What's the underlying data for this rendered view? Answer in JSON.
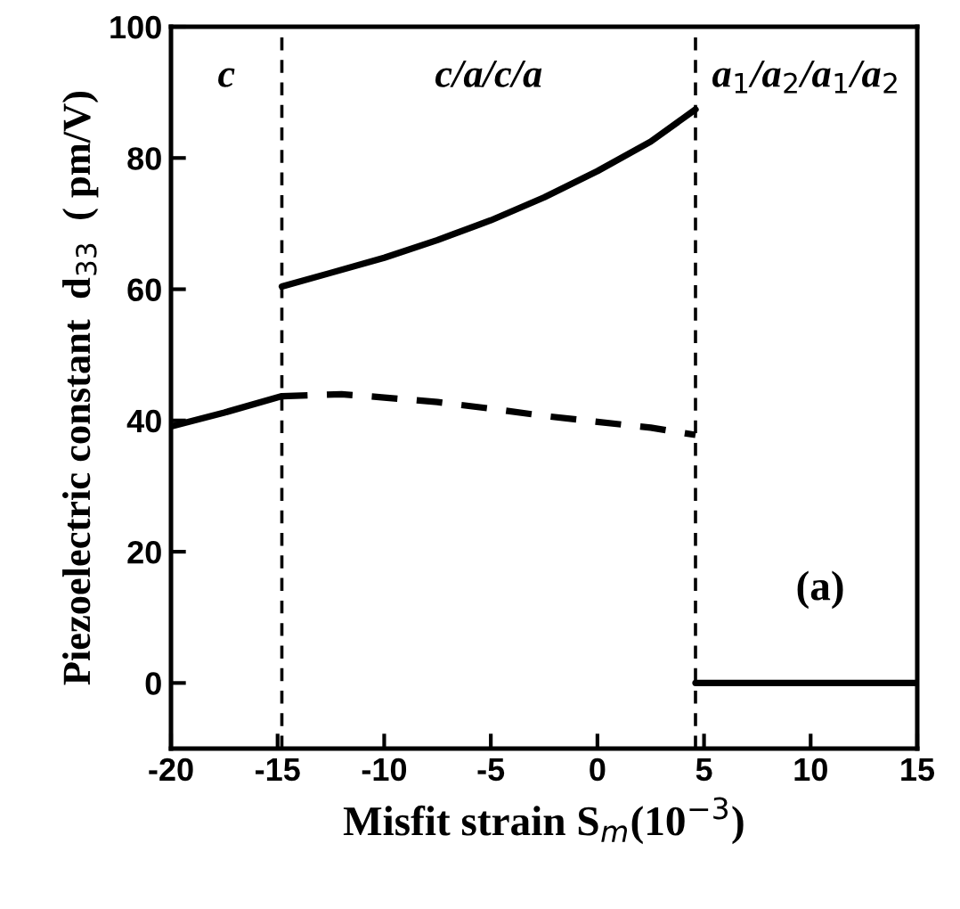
{
  "chart_data": {
    "type": "line",
    "xlabel": "Misfit strain S$_{m}$(10$^{−3}$)",
    "ylabel": "Piezoelectric constant  d$_{33}$  ( pm/V)",
    "xlim": [
      -20,
      15
    ],
    "xticks": [
      -20,
      -15,
      -10,
      -5,
      0,
      5,
      10,
      15
    ],
    "ylim": [
      -10,
      100
    ],
    "yticks": [
      0,
      20,
      40,
      60,
      80,
      100
    ],
    "grid": false,
    "legend": false,
    "marker": "none",
    "series": [
      {
        "color": "#000000",
        "line_style": "solid",
        "x": [
          -20,
          -17.5,
          -14.8
        ],
        "values": [
          39.1,
          41.2,
          43.7
        ]
      },
      {
        "color": "#000000",
        "line_style": "dashed",
        "x": [
          -14.8,
          -12,
          -10,
          -7.5,
          -5,
          -2.5,
          0,
          2.5,
          4.6
        ],
        "values": [
          43.7,
          44,
          43.5,
          42.8,
          41.8,
          40.7,
          39.8,
          38.9,
          37.8
        ]
      },
      {
        "color": "#000000",
        "line_style": "solid",
        "x": [
          -14.8,
          -12.5,
          -10,
          -7.5,
          -5,
          -2.5,
          0,
          2.5,
          4.6
        ],
        "values": [
          60.4,
          62.5,
          64.8,
          67.5,
          70.5,
          74,
          78,
          82.5,
          87.4
        ]
      },
      {
        "color": "#000000",
        "line_style": "solid",
        "x": [
          4.6,
          15
        ],
        "values": [
          0,
          0
        ]
      }
    ],
    "ref_lines": [
      {
        "axis": "x",
        "value": -14.8,
        "line_style": "dashed",
        "color": "#000000"
      },
      {
        "axis": "x",
        "value": 4.6,
        "line_style": "dashed",
        "color": "#000000"
      }
    ],
    "annotations": [
      "c",
      "c/a/c/a",
      "a$_{1}$/a$_{2}$/a$_{1}$/a$_{2}$",
      "(a)"
    ]
  }
}
